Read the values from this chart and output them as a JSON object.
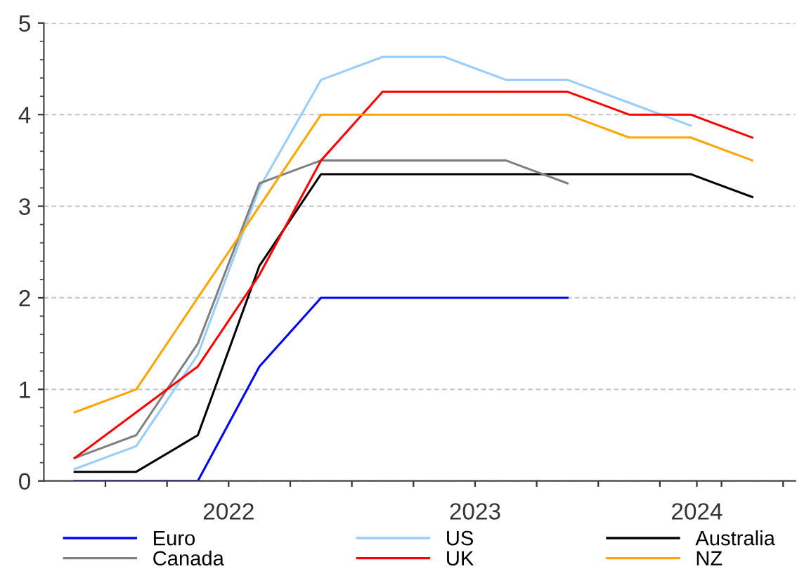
{
  "chart_data": {
    "type": "line",
    "x": [
      2021.875,
      2022.125,
      2022.375,
      2022.625,
      2022.875,
      2023.125,
      2023.375,
      2023.625,
      2023.875,
      2024.125,
      2024.375,
      2024.625
    ],
    "series": [
      {
        "name": "Euro",
        "color": "#0000ff",
        "values": [
          0,
          0,
          0,
          1.25,
          2,
          2,
          2,
          2,
          2,
          null,
          null,
          null
        ]
      },
      {
        "name": "US",
        "color": "#99ccff",
        "values": [
          0.13,
          0.38,
          1.38,
          3.2,
          4.38,
          4.63,
          4.63,
          4.38,
          4.38,
          4.13,
          3.88,
          null
        ]
      },
      {
        "name": "Australia",
        "color": "#000000",
        "values": [
          0.1,
          0.1,
          0.5,
          2.35,
          3.35,
          3.35,
          3.35,
          3.35,
          3.35,
          3.35,
          3.35,
          3.1
        ]
      },
      {
        "name": "Canada",
        "color": "#808080",
        "values": [
          0.25,
          0.5,
          1.5,
          3.25,
          3.5,
          3.5,
          3.5,
          3.5,
          3.25,
          null,
          null,
          null
        ]
      },
      {
        "name": "UK",
        "color": "#ff0000",
        "values": [
          0.25,
          0.75,
          1.25,
          2.25,
          3.5,
          4.25,
          4.25,
          4.25,
          4.25,
          4.0,
          4.0,
          3.75
        ]
      },
      {
        "name": "NZ",
        "color": "#ffa500",
        "values": [
          0.75,
          1.0,
          2.0,
          3.0,
          4.0,
          4.0,
          4.0,
          4.0,
          4.0,
          3.75,
          3.75,
          3.5
        ]
      }
    ],
    "xlim": [
      2021.75,
      2024.8
    ],
    "xticks": [
      {
        "value": 2022.0,
        "label": null
      },
      {
        "value": 2022.25,
        "label": null
      },
      {
        "value": 2022.5,
        "label": "2022"
      },
      {
        "value": 2022.75,
        "label": null
      },
      {
        "value": 2023.0,
        "label": null
      },
      {
        "value": 2023.25,
        "label": null
      },
      {
        "value": 2023.5,
        "label": "2023"
      },
      {
        "value": 2023.75,
        "label": null
      },
      {
        "value": 2024.0,
        "label": null
      },
      {
        "value": 2024.25,
        "label": null
      },
      {
        "value": 2024.4,
        "label": "2024"
      },
      {
        "value": 2024.5,
        "label": null
      },
      {
        "value": 2024.75,
        "label": null
      }
    ],
    "ylim": [
      0,
      5
    ],
    "yticks": [
      0,
      1,
      2,
      3,
      4,
      5
    ],
    "grid": "y",
    "legend": "bottom",
    "marker": "none",
    "line_style": "solid"
  }
}
